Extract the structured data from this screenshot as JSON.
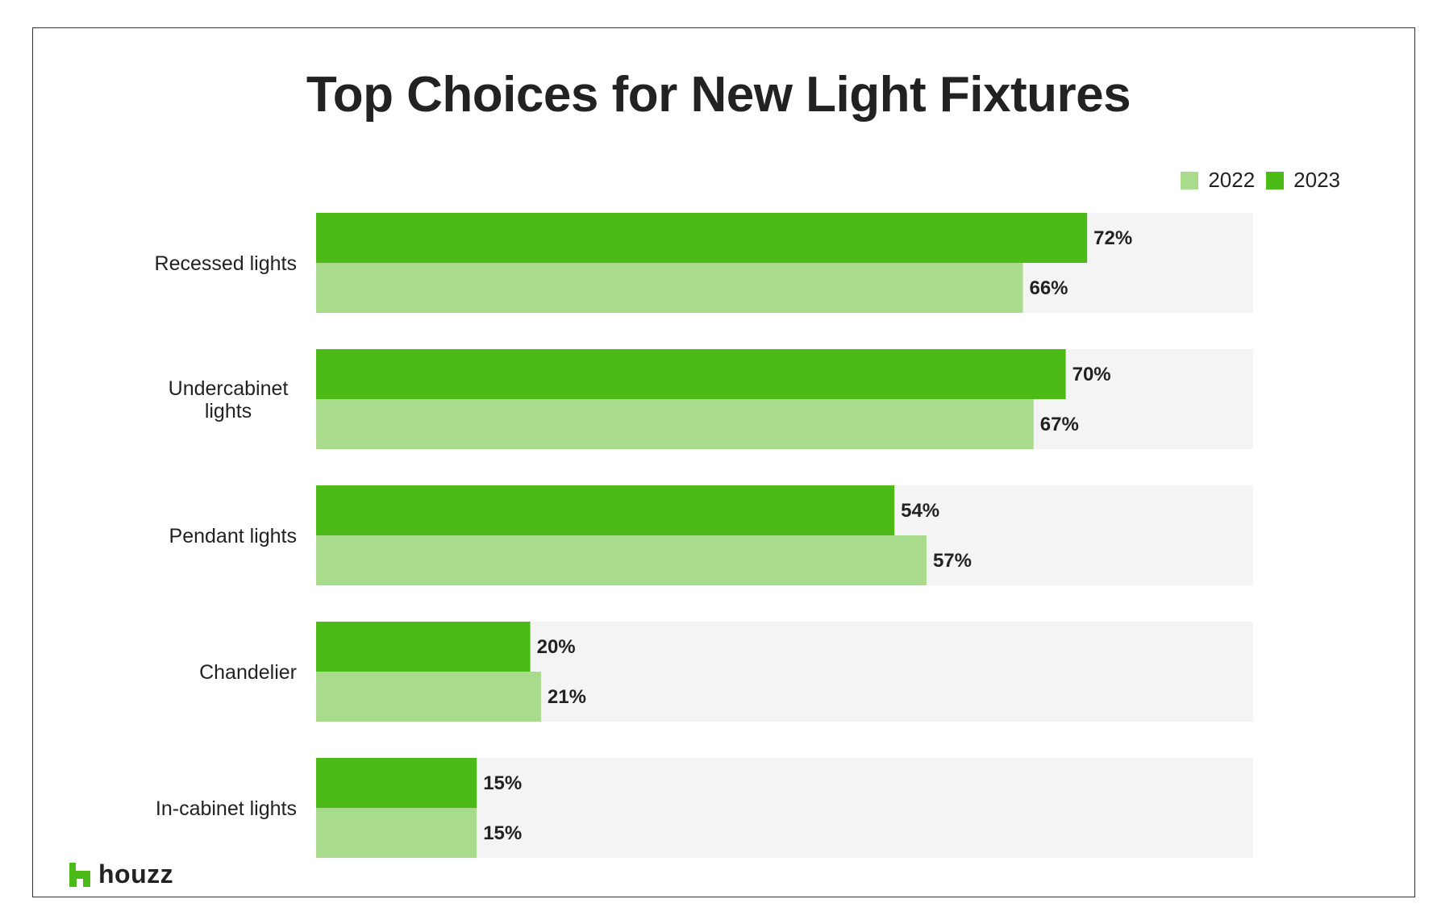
{
  "chart_data": {
    "type": "bar",
    "orientation": "horizontal",
    "title": "Top Choices for New Light Fixtures",
    "categories": [
      "Recessed lights",
      "Undercabinet lights",
      "Pendant lights",
      "Chandelier",
      "In-cabinet lights"
    ],
    "category_label_lines": [
      [
        "Recessed lights"
      ],
      [
        "Undercabinet",
        "lights"
      ],
      [
        "Pendant lights"
      ],
      [
        "Chandelier"
      ],
      [
        "In-cabinet lights"
      ]
    ],
    "series": [
      {
        "name": "2023",
        "values": [
          72,
          70,
          54,
          20,
          15
        ],
        "labels": [
          "72%",
          "70%",
          "54%",
          "20%",
          "15%"
        ],
        "color": "#4CBB17"
      },
      {
        "name": "2022",
        "values": [
          66,
          67,
          57,
          21,
          15
        ],
        "labels": [
          "66%",
          "67%",
          "57%",
          "21%",
          "15%"
        ],
        "color": "#A8DC8C"
      }
    ],
    "xlim": [
      0,
      87.5
    ],
    "background_band_color": "#F4F4F4",
    "grid": false,
    "legend": {
      "position": "top-right",
      "order": [
        "2022",
        "2023"
      ]
    }
  },
  "brand": {
    "name": "houzz",
    "color": "#4CBB17"
  }
}
